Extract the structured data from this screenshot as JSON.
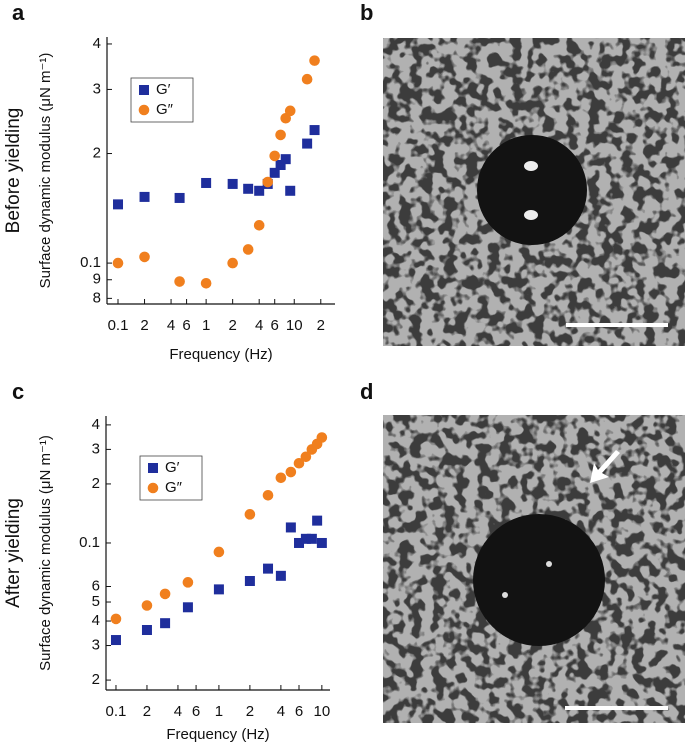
{
  "chart_data": [
    {
      "type": "scatter",
      "panel": "a",
      "side_label": "Before yielding",
      "x_label": "Frequency (Hz)",
      "y_label": "Surface dynamic modulus (μN m⁻¹)",
      "log_x": true,
      "log_y": true,
      "legend": "upper left",
      "xlim": [
        0.075,
        29
      ],
      "ylim": [
        0.0772,
        0.418
      ],
      "xticks": [
        0.1,
        {
          "value": 0.2,
          "label": "2"
        },
        {
          "value": 0.4,
          "label": "4"
        },
        {
          "value": 0.6,
          "label": "6"
        },
        1,
        {
          "value": 2,
          "label": "2"
        },
        {
          "value": 4,
          "label": "4"
        },
        {
          "value": 6,
          "label": "6"
        },
        10,
        {
          "value": 20,
          "label": "2"
        }
      ],
      "yticks": [
        {
          "value": 0.08,
          "label": "8"
        },
        {
          "value": 0.09,
          "label": "9"
        },
        0.1,
        {
          "value": 0.2,
          "label": "2"
        },
        {
          "value": 0.3,
          "label": "3"
        },
        {
          "value": 0.4,
          "label": "4"
        }
      ],
      "series": [
        {
          "name": "G′",
          "color": "#1f2e9c",
          "marker": "square",
          "x": [
            0.1,
            0.2,
            0.5,
            1,
            2,
            3,
            4,
            5,
            6,
            7,
            8,
            9,
            14,
            17
          ],
          "values": [
            0.145,
            0.152,
            0.151,
            0.166,
            0.165,
            0.16,
            0.158,
            0.165,
            0.177,
            0.186,
            0.193,
            0.158,
            0.213,
            0.232
          ]
        },
        {
          "name": "G″",
          "color": "#f07f1e",
          "marker": "circle",
          "x": [
            0.1,
            0.2,
            0.5,
            1,
            2,
            3,
            4,
            5,
            6,
            7,
            8,
            9,
            14,
            17
          ],
          "values": [
            0.1,
            0.104,
            0.089,
            0.088,
            0.1,
            0.109,
            0.127,
            0.167,
            0.197,
            0.225,
            0.25,
            0.262,
            0.32,
            0.36
          ]
        }
      ]
    },
    {
      "type": "scatter",
      "panel": "c",
      "side_label": "After yielding",
      "x_label": "Frequency (Hz)",
      "y_label": "Surface dynamic modulus (μN m⁻¹)",
      "log_x": true,
      "log_y": true,
      "legend": "upper left",
      "xlim": [
        0.08,
        12
      ],
      "ylim": [
        0.0178,
        0.444
      ],
      "xticks": [
        0.1,
        {
          "value": 0.2,
          "label": "2"
        },
        {
          "value": 0.4,
          "label": "4"
        },
        {
          "value": 0.6,
          "label": "6"
        },
        1,
        {
          "value": 2,
          "label": "2"
        },
        {
          "value": 4,
          "label": "4"
        },
        {
          "value": 6,
          "label": "6"
        },
        10
      ],
      "yticks": [
        {
          "value": 0.02,
          "label": "2"
        },
        {
          "value": 0.03,
          "label": "3"
        },
        {
          "value": 0.04,
          "label": "4"
        },
        {
          "value": 0.05,
          "label": "5"
        },
        {
          "value": 0.06,
          "label": "6"
        },
        0.1,
        {
          "value": 0.2,
          "label": "2"
        },
        {
          "value": 0.3,
          "label": "3"
        },
        {
          "value": 0.4,
          "label": "4"
        }
      ],
      "series": [
        {
          "name": "G′",
          "color": "#1f2e9c",
          "marker": "square",
          "x": [
            0.1,
            0.2,
            0.3,
            0.5,
            1,
            2,
            3,
            4,
            5,
            6,
            7,
            8,
            9,
            10
          ],
          "values": [
            0.032,
            0.036,
            0.039,
            0.047,
            0.058,
            0.064,
            0.074,
            0.068,
            0.12,
            0.1,
            0.105,
            0.105,
            0.13,
            0.1
          ]
        },
        {
          "name": "G″",
          "color": "#f07f1e",
          "marker": "circle",
          "x": [
            0.1,
            0.2,
            0.3,
            0.5,
            1,
            2,
            3,
            4,
            5,
            6,
            7,
            8,
            9,
            10
          ],
          "values": [
            0.041,
            0.048,
            0.055,
            0.063,
            0.09,
            0.14,
            0.175,
            0.215,
            0.23,
            0.255,
            0.275,
            0.3,
            0.32,
            0.345
          ]
        }
      ]
    }
  ],
  "images": [
    {
      "panel": "b"
    },
    {
      "panel": "d"
    }
  ]
}
